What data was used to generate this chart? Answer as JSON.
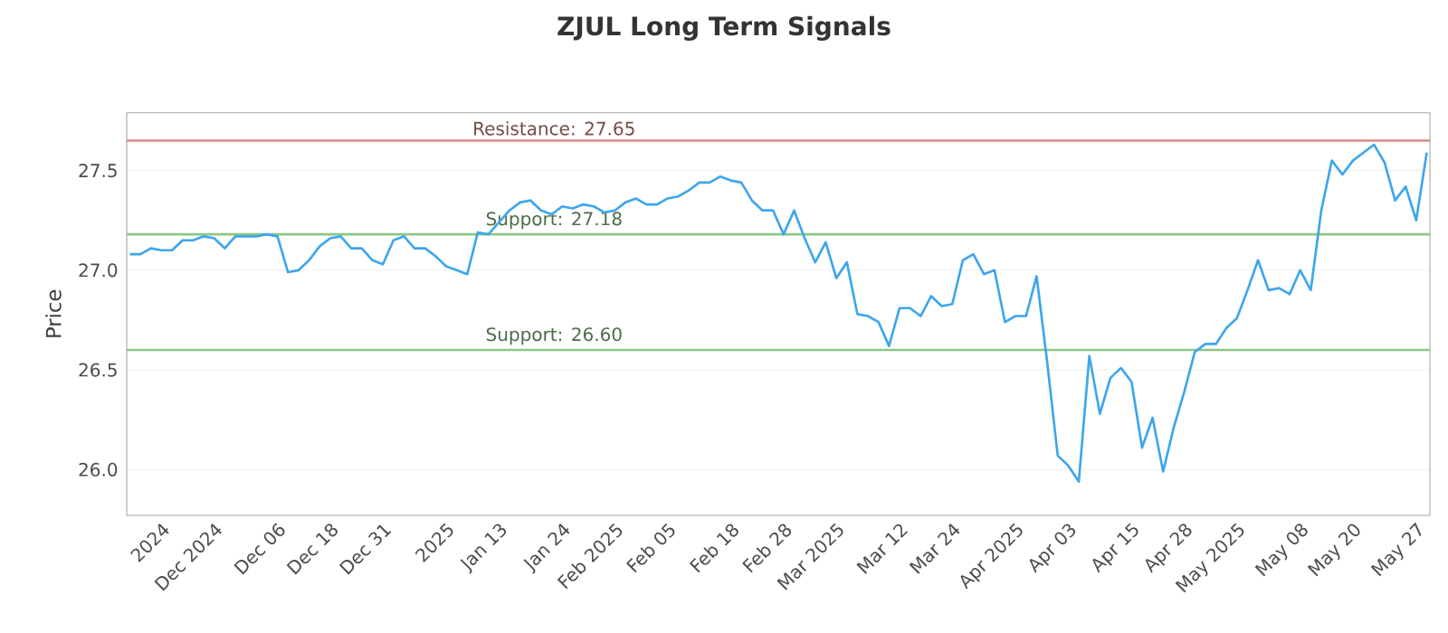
{
  "chart_data": {
    "type": "line",
    "title": "ZJUL Long Term Signals",
    "ylabel": "Price",
    "categories": [
      null,
      null,
      null,
      "2024",
      null,
      null,
      null,
      null,
      "Dec 2024",
      null,
      null,
      null,
      null,
      null,
      "Dec 06",
      null,
      null,
      null,
      null,
      "Dec 18",
      null,
      null,
      null,
      null,
      "Dec 31",
      null,
      null,
      null,
      null,
      null,
      "2025",
      null,
      null,
      null,
      null,
      "Jan 13",
      null,
      null,
      null,
      null,
      null,
      "Jan 24",
      null,
      null,
      null,
      null,
      "Feb 2025",
      null,
      null,
      null,
      null,
      "Feb 05",
      null,
      null,
      null,
      null,
      null,
      "Feb 18",
      null,
      null,
      null,
      null,
      "Feb 28",
      null,
      null,
      null,
      null,
      "Mar 2025",
      null,
      null,
      null,
      null,
      null,
      "Mar 12",
      null,
      null,
      null,
      null,
      "Mar 24",
      null,
      null,
      null,
      null,
      null,
      "Apr 2025",
      null,
      null,
      null,
      null,
      "Apr 03",
      null,
      null,
      null,
      null,
      null,
      "Apr 15",
      null,
      null,
      null,
      null,
      "Apr 28",
      null,
      null,
      null,
      null,
      "May 2025",
      null,
      null,
      null,
      null,
      null,
      "May 08",
      null,
      null,
      null,
      null,
      "May 20",
      null,
      null,
      null,
      null,
      null,
      "May 27",
      null
    ],
    "series": [
      {
        "color": "#3ea6ec",
        "values": [
          27.08,
          27.08,
          27.11,
          27.1,
          27.1,
          27.15,
          27.15,
          27.17,
          27.16,
          27.11,
          27.17,
          27.17,
          27.17,
          27.18,
          27.17,
          26.99,
          27.0,
          27.05,
          27.12,
          27.16,
          27.17,
          27.11,
          27.11,
          27.05,
          27.03,
          27.15,
          27.17,
          27.11,
          27.11,
          27.07,
          27.02,
          27.0,
          26.98,
          27.19,
          27.18,
          27.24,
          27.3,
          27.34,
          27.35,
          27.3,
          27.28,
          27.32,
          27.31,
          27.33,
          27.32,
          27.29,
          27.3,
          27.34,
          27.36,
          27.33,
          27.33,
          27.36,
          27.37,
          27.4,
          27.44,
          27.44,
          27.47,
          27.45,
          27.44,
          27.35,
          27.3,
          27.3,
          27.18,
          27.3,
          27.16,
          27.04,
          27.14,
          26.96,
          27.04,
          26.78,
          26.77,
          26.74,
          26.62,
          26.81,
          26.81,
          26.77,
          26.87,
          26.82,
          26.83,
          27.05,
          27.08,
          26.98,
          27.0,
          26.74,
          26.77,
          26.77,
          26.97,
          26.54,
          26.07,
          26.02,
          25.94,
          26.57,
          26.28,
          26.46,
          26.51,
          26.44,
          26.11,
          26.26,
          25.99,
          26.21,
          26.39,
          26.59,
          26.63,
          26.63,
          26.71,
          26.76,
          26.9,
          27.05,
          26.9,
          26.91,
          26.88,
          27.0,
          26.9,
          27.3,
          27.55,
          27.48,
          27.55,
          27.59,
          27.63,
          27.54,
          27.35,
          27.42,
          27.25,
          27.59
        ]
      }
    ],
    "ylim": [
      25.77,
      27.79
    ],
    "yticks": [
      {
        "value": 26,
        "label": "26.0"
      },
      26.5,
      {
        "value": 27,
        "label": "27.0"
      },
      27.5
    ],
    "grid": "y",
    "marker": "none",
    "line_style": "solid",
    "ref_lines": [
      {
        "axis": "y",
        "value": 27.65,
        "label": "Resistance: 27.65",
        "color": "#d98a86"
      },
      {
        "axis": "y",
        "value": 27.18,
        "label": "Support: 27.18",
        "color": "#8cc785"
      },
      {
        "axis": "y",
        "value": 26.6,
        "label": "Support: 26.60",
        "color": "#8cc785"
      }
    ]
  }
}
